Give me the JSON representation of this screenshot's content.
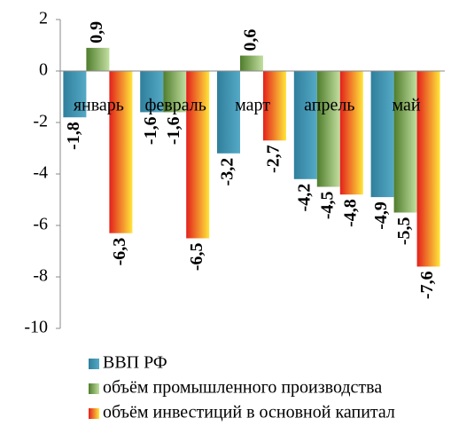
{
  "chart_data": {
    "type": "bar",
    "categories": [
      "январь",
      "февраль",
      "март",
      "апрель",
      "май"
    ],
    "series": [
      {
        "name": "ВВП РФ",
        "color": "#2f7f9c",
        "color2": "#55aac6",
        "values": [
          -1.8,
          -1.6,
          -3.2,
          -4.2,
          -4.9
        ],
        "value_labels": [
          "-1,8",
          "-1,6",
          "-3,2",
          "-4,2",
          "-4,9"
        ]
      },
      {
        "name": "объём промышленного производства",
        "color": "#4f7d2c",
        "color2": "#c3dfa0",
        "values": [
          0.9,
          -1.6,
          0.6,
          -4.5,
          -5.5
        ],
        "value_labels": [
          "0,9",
          "-1,6",
          "0,6",
          "-4,5",
          "-5,5"
        ]
      },
      {
        "name": "объём инвестиций в основной капитал",
        "color": "#e3201c",
        "color2": "#ffe63a",
        "values": [
          -6.3,
          -6.5,
          -2.7,
          -4.8,
          -7.6
        ],
        "value_labels": [
          "-6,3",
          "-6,5",
          "-2,7",
          "-4,8",
          "-7,6"
        ]
      }
    ],
    "ylim": [
      -10,
      2
    ],
    "yticks": [
      2,
      0,
      -2,
      -4,
      -6,
      -8,
      -10
    ],
    "grid": false,
    "legend": "bottom"
  }
}
